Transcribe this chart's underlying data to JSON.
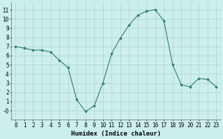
{
  "x": [
    0,
    1,
    2,
    3,
    4,
    5,
    6,
    7,
    8,
    9,
    10,
    11,
    12,
    13,
    14,
    15,
    16,
    17,
    18,
    19,
    20,
    21,
    22,
    23
  ],
  "y": [
    7.0,
    6.8,
    6.6,
    6.6,
    6.4,
    5.5,
    4.7,
    1.2,
    -0.1,
    0.5,
    3.0,
    6.2,
    7.9,
    9.3,
    10.4,
    10.85,
    11.0,
    9.8,
    5.0,
    2.8,
    2.6,
    3.5,
    3.4,
    2.6
  ],
  "line_color": "#2e7d6e",
  "marker": "D",
  "marker_size": 1.8,
  "bg_color": "#cceeed",
  "grid_color": "#aad4d2",
  "xlabel": "Humidex (Indice chaleur)",
  "xlim": [
    -0.5,
    23.5
  ],
  "ylim": [
    -1.0,
    11.8
  ],
  "xticks": [
    0,
    1,
    2,
    3,
    4,
    5,
    6,
    7,
    8,
    9,
    10,
    11,
    12,
    13,
    14,
    15,
    16,
    17,
    18,
    19,
    20,
    21,
    22,
    23
  ],
  "yticks": [
    0,
    1,
    2,
    3,
    4,
    5,
    6,
    7,
    8,
    9,
    10,
    11
  ],
  "yticklabels": [
    "-0",
    "1",
    "2",
    "3",
    "4",
    "5",
    "6",
    "7",
    "8",
    "9",
    "10",
    "11"
  ],
  "tick_fontsize": 5.5,
  "xlabel_fontsize": 6.5
}
